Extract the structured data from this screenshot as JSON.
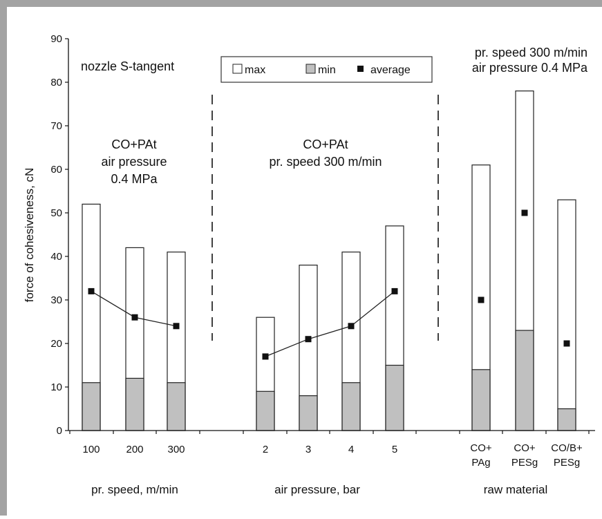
{
  "chart_data": {
    "type": "bar",
    "ylabel": "force of cohesiveness, cN",
    "ylim": [
      0,
      90
    ],
    "yticks": [
      0,
      10,
      20,
      30,
      40,
      50,
      60,
      70,
      80,
      90
    ],
    "legend": {
      "placement": "top-center",
      "items": [
        "max",
        "min",
        "average"
      ]
    },
    "colors": {
      "max": "#ffffff",
      "min": "#c0c0c0",
      "average": "#111111"
    },
    "annotations": {
      "nozzle": "nozzle S-tangent",
      "group1_lines": [
        "CO+PAt",
        "air pressure",
        "0.4 MPa"
      ],
      "group2_lines": [
        "CO+PAt",
        "pr. speed 300 m/min"
      ],
      "group3_lines": [
        "pr. speed 300 m/min",
        "air pressure 0.4 MPa"
      ]
    },
    "groups": [
      {
        "xlabel": "pr. speed, m/min",
        "categories": [
          "100",
          "200",
          "300"
        ],
        "max": [
          52,
          42,
          41
        ],
        "min": [
          11,
          12,
          11
        ],
        "average": [
          32,
          26,
          24
        ],
        "connected": true
      },
      {
        "xlabel": "air pressure, bar",
        "categories": [
          "2",
          "3",
          "4",
          "5"
        ],
        "max": [
          26,
          38,
          41,
          47
        ],
        "min": [
          9,
          8,
          11,
          15
        ],
        "average": [
          17,
          21,
          24,
          32
        ],
        "connected": true
      },
      {
        "xlabel": "raw material",
        "categories": [
          [
            "CO+",
            "PAg"
          ],
          [
            "CO+",
            "PESg"
          ],
          [
            "CO/B+",
            "PESg"
          ]
        ],
        "max": [
          61,
          78,
          53
        ],
        "min": [
          14,
          23,
          5
        ],
        "average": [
          30,
          50,
          20
        ],
        "connected": false
      }
    ]
  }
}
